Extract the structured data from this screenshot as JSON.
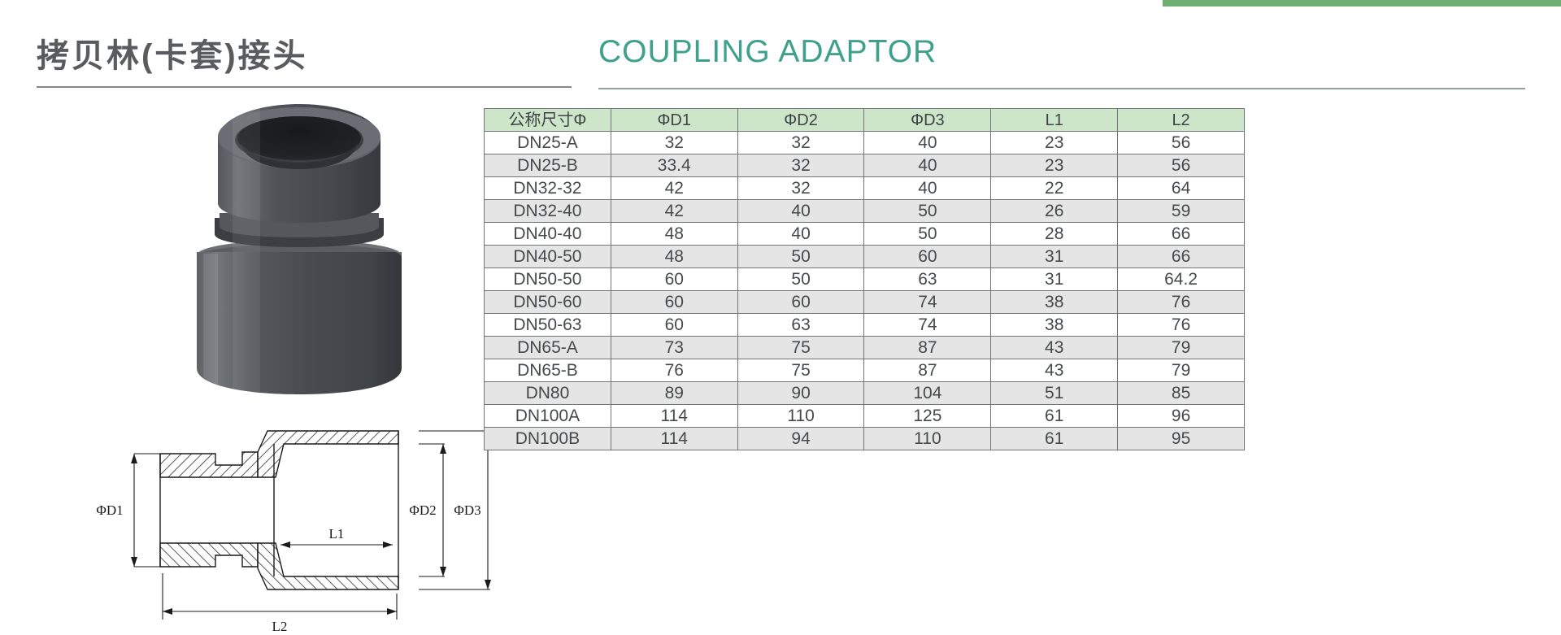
{
  "page": {
    "title_cn": "拷贝林(卡套)接头",
    "title_en": "COUPLING ADAPTOR"
  },
  "colors": {
    "accent_teal": "#3fa18b",
    "top_bar_green": "#6fae72",
    "table_header_green": "#cde5c9",
    "table_alt_row_gray": "#e4e5e4",
    "table_border_gray": "#737678",
    "title_gray": "#595b5e",
    "product_body_gray": "#4a4e52"
  },
  "diagram": {
    "labels": {
      "d1": "ΦD1",
      "d2": "ΦD2",
      "d3": "ΦD3",
      "l1": "L1",
      "l2": "L2"
    }
  },
  "table": {
    "headers": [
      "公称尺寸Φ",
      "ΦD1",
      "ΦD2",
      "ΦD3",
      "L1",
      "L2"
    ],
    "rows": [
      [
        "DN25-A",
        "32",
        "32",
        "40",
        "23",
        "56"
      ],
      [
        "DN25-B",
        "33.4",
        "32",
        "40",
        "23",
        "56"
      ],
      [
        "DN32-32",
        "42",
        "32",
        "40",
        "22",
        "64"
      ],
      [
        "DN32-40",
        "42",
        "40",
        "50",
        "26",
        "59"
      ],
      [
        "DN40-40",
        "48",
        "40",
        "50",
        "28",
        "66"
      ],
      [
        "DN40-50",
        "48",
        "50",
        "60",
        "31",
        "66"
      ],
      [
        "DN50-50",
        "60",
        "50",
        "63",
        "31",
        "64.2"
      ],
      [
        "DN50-60",
        "60",
        "60",
        "74",
        "38",
        "76"
      ],
      [
        "DN50-63",
        "60",
        "63",
        "74",
        "38",
        "76"
      ],
      [
        "DN65-A",
        "73",
        "75",
        "87",
        "43",
        "79"
      ],
      [
        "DN65-B",
        "76",
        "75",
        "87",
        "43",
        "79"
      ],
      [
        "DN80",
        "89",
        "90",
        "104",
        "51",
        "85"
      ],
      [
        "DN100A",
        "114",
        "110",
        "125",
        "61",
        "96"
      ],
      [
        "DN100B",
        "114",
        "94",
        "110",
        "61",
        "95"
      ]
    ]
  },
  "chart_data": {
    "type": "table",
    "title": "COUPLING ADAPTOR / 拷贝林(卡套)接头 dimensions",
    "columns": [
      "公称尺寸Φ",
      "ΦD1",
      "ΦD2",
      "ΦD3",
      "L1",
      "L2"
    ],
    "rows": [
      [
        "DN25-A",
        32,
        32,
        40,
        23,
        56
      ],
      [
        "DN25-B",
        33.4,
        32,
        40,
        23,
        56
      ],
      [
        "DN32-32",
        42,
        32,
        40,
        22,
        64
      ],
      [
        "DN32-40",
        42,
        40,
        50,
        26,
        59
      ],
      [
        "DN40-40",
        48,
        40,
        50,
        28,
        66
      ],
      [
        "DN40-50",
        48,
        50,
        60,
        31,
        66
      ],
      [
        "DN50-50",
        60,
        50,
        63,
        31,
        64.2
      ],
      [
        "DN50-60",
        60,
        60,
        74,
        38,
        76
      ],
      [
        "DN50-63",
        60,
        63,
        74,
        38,
        76
      ],
      [
        "DN65-A",
        73,
        75,
        87,
        43,
        79
      ],
      [
        "DN65-B",
        76,
        75,
        87,
        43,
        79
      ],
      [
        "DN80",
        89,
        90,
        104,
        51,
        85
      ],
      [
        "DN100A",
        114,
        110,
        125,
        61,
        96
      ],
      [
        "DN100B",
        114,
        94,
        110,
        61,
        95
      ]
    ]
  }
}
